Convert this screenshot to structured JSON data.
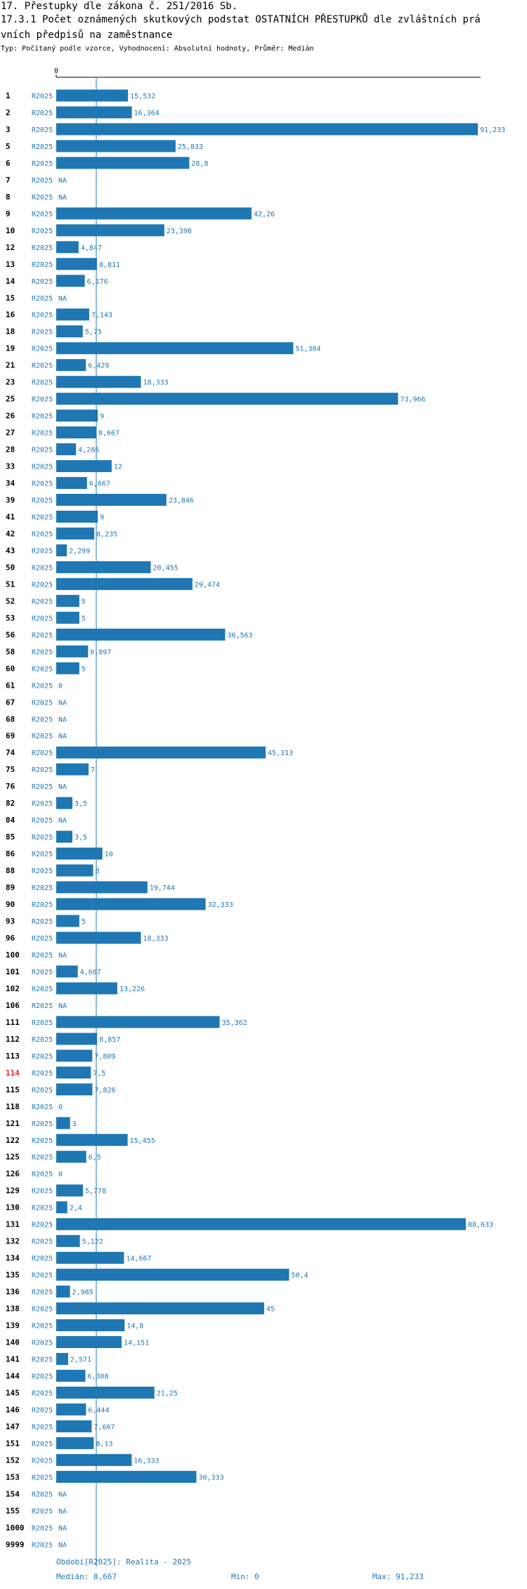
{
  "header": {
    "title_line1": "17. Přestupky dle zákona č. 251/2016 Sb.",
    "title_line2": "17.3.1 Počet oznámených skutkových podstat OSTATNÍCH PŘESTUPKŮ dle zvláštních prá",
    "title_line3": "vních předpisů na zaměstnance",
    "subtitle": "Typ: Počítaný podle vzorce, Vyhodnocení: Absolutní hodnoty, Průměr: Medián"
  },
  "colors": {
    "bar": "#1f77b4",
    "label": "#1f77b4",
    "highlight": "#e8262b",
    "text": "#000000"
  },
  "chart_data": {
    "type": "bar",
    "orientation": "horizontal",
    "series_label": "R2025",
    "axis_zero_label": "0",
    "xlim": [
      0,
      91.233
    ],
    "median": 8.667,
    "highlight_category": "114",
    "categories": [
      "1",
      "2",
      "3",
      "5",
      "6",
      "7",
      "8",
      "9",
      "10",
      "12",
      "13",
      "14",
      "15",
      "16",
      "18",
      "19",
      "21",
      "23",
      "25",
      "26",
      "27",
      "28",
      "33",
      "34",
      "39",
      "41",
      "42",
      "43",
      "50",
      "51",
      "52",
      "53",
      "56",
      "58",
      "60",
      "61",
      "67",
      "68",
      "69",
      "74",
      "75",
      "76",
      "82",
      "84",
      "85",
      "86",
      "88",
      "89",
      "90",
      "93",
      "96",
      "100",
      "101",
      "102",
      "106",
      "111",
      "112",
      "113",
      "114",
      "115",
      "118",
      "121",
      "122",
      "125",
      "126",
      "129",
      "130",
      "131",
      "132",
      "134",
      "135",
      "136",
      "138",
      "139",
      "140",
      "141",
      "144",
      "145",
      "146",
      "147",
      "151",
      "152",
      "153",
      "154",
      "155",
      "1000",
      "9999"
    ],
    "values": [
      15.532,
      16.364,
      91.233,
      25.833,
      28.8,
      null,
      null,
      42.26,
      23.396,
      4.847,
      8.811,
      6.176,
      null,
      7.143,
      5.75,
      51.304,
      6.429,
      18.333,
      73.966,
      9,
      8.667,
      4.286,
      12,
      6.667,
      23.846,
      9,
      8.235,
      2.299,
      20.455,
      29.474,
      5,
      5,
      36.563,
      6.897,
      5,
      0,
      null,
      null,
      null,
      45.313,
      7,
      null,
      3.5,
      null,
      3.5,
      10,
      8,
      19.744,
      32.333,
      5,
      18.333,
      null,
      4.667,
      13.226,
      null,
      35.362,
      8.857,
      7.809,
      7.5,
      7.826,
      0,
      3,
      15.455,
      6.5,
      0,
      5.778,
      2.4,
      88.633,
      5.122,
      14.667,
      50.4,
      2.985,
      45,
      14.8,
      14.151,
      2.571,
      6.308,
      21.25,
      6.444,
      7.667,
      8.13,
      16.333,
      30.333,
      null,
      null,
      null,
      null
    ],
    "value_labels": [
      "15,532",
      "16,364",
      "91,233",
      "25,833",
      "28,8",
      "NA",
      "NA",
      "42,26",
      "23,396",
      "4,847",
      "8,811",
      "6,176",
      "NA",
      "7,143",
      "5,75",
      "51,304",
      "6,429",
      "18,333",
      "73,966",
      "9",
      "8,667",
      "4,286",
      "12",
      "6,667",
      "23,846",
      "9",
      "8,235",
      "2,299",
      "20,455",
      "29,474",
      "5",
      "5",
      "36,563",
      "6,897",
      "5",
      "0",
      "NA",
      "NA",
      "NA",
      "45,313",
      "7",
      "NA",
      "3,5",
      "NA",
      "3,5",
      "10",
      "8",
      "19,744",
      "32,333",
      "5",
      "18,333",
      "NA",
      "4,667",
      "13,226",
      "NA",
      "35,362",
      "8,857",
      "7,809",
      "7,5",
      "7,826",
      "0",
      "3",
      "15,455",
      "6,5",
      "0",
      "5,778",
      "2,4",
      "88,633",
      "5,122",
      "14,667",
      "50,4",
      "2,985",
      "45",
      "14,8",
      "14,151",
      "2,571",
      "6,308",
      "21,25",
      "6,444",
      "7,667",
      "8,13",
      "16,333",
      "30,333",
      "NA",
      "NA",
      "NA",
      "NA"
    ]
  },
  "footer": {
    "period": "Období[R2025]: Realita - 2025",
    "median": "Medián: 8,667",
    "min": "Min: 0",
    "max": "Max: 91,233"
  }
}
